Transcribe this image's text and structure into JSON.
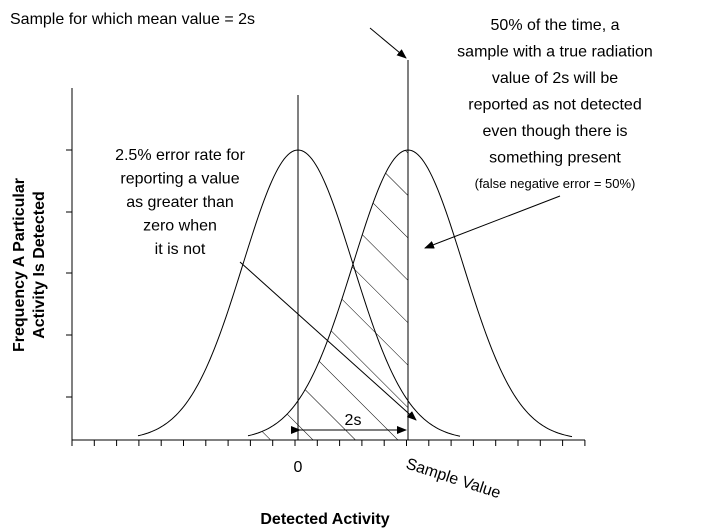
{
  "top_label": "Sample for which mean value = 2s",
  "right_note": [
    "50% of the time, a",
    "sample with a true radiation",
    "value of 2s will be",
    "reported as not detected",
    "even though there is",
    "something present"
  ],
  "right_note_small": "(false negative error = 50%)",
  "left_note": [
    "2.5% error rate for",
    "reporting a value",
    "as greater than",
    "zero when",
    "it is not"
  ],
  "interval_label": "2s",
  "zero_label": "0",
  "sample_value_label": "Sample Value",
  "x_axis_title": "Detected Activity",
  "y_axis_title": [
    "Frequency A Particular",
    "Activity Is Detected"
  ]
}
